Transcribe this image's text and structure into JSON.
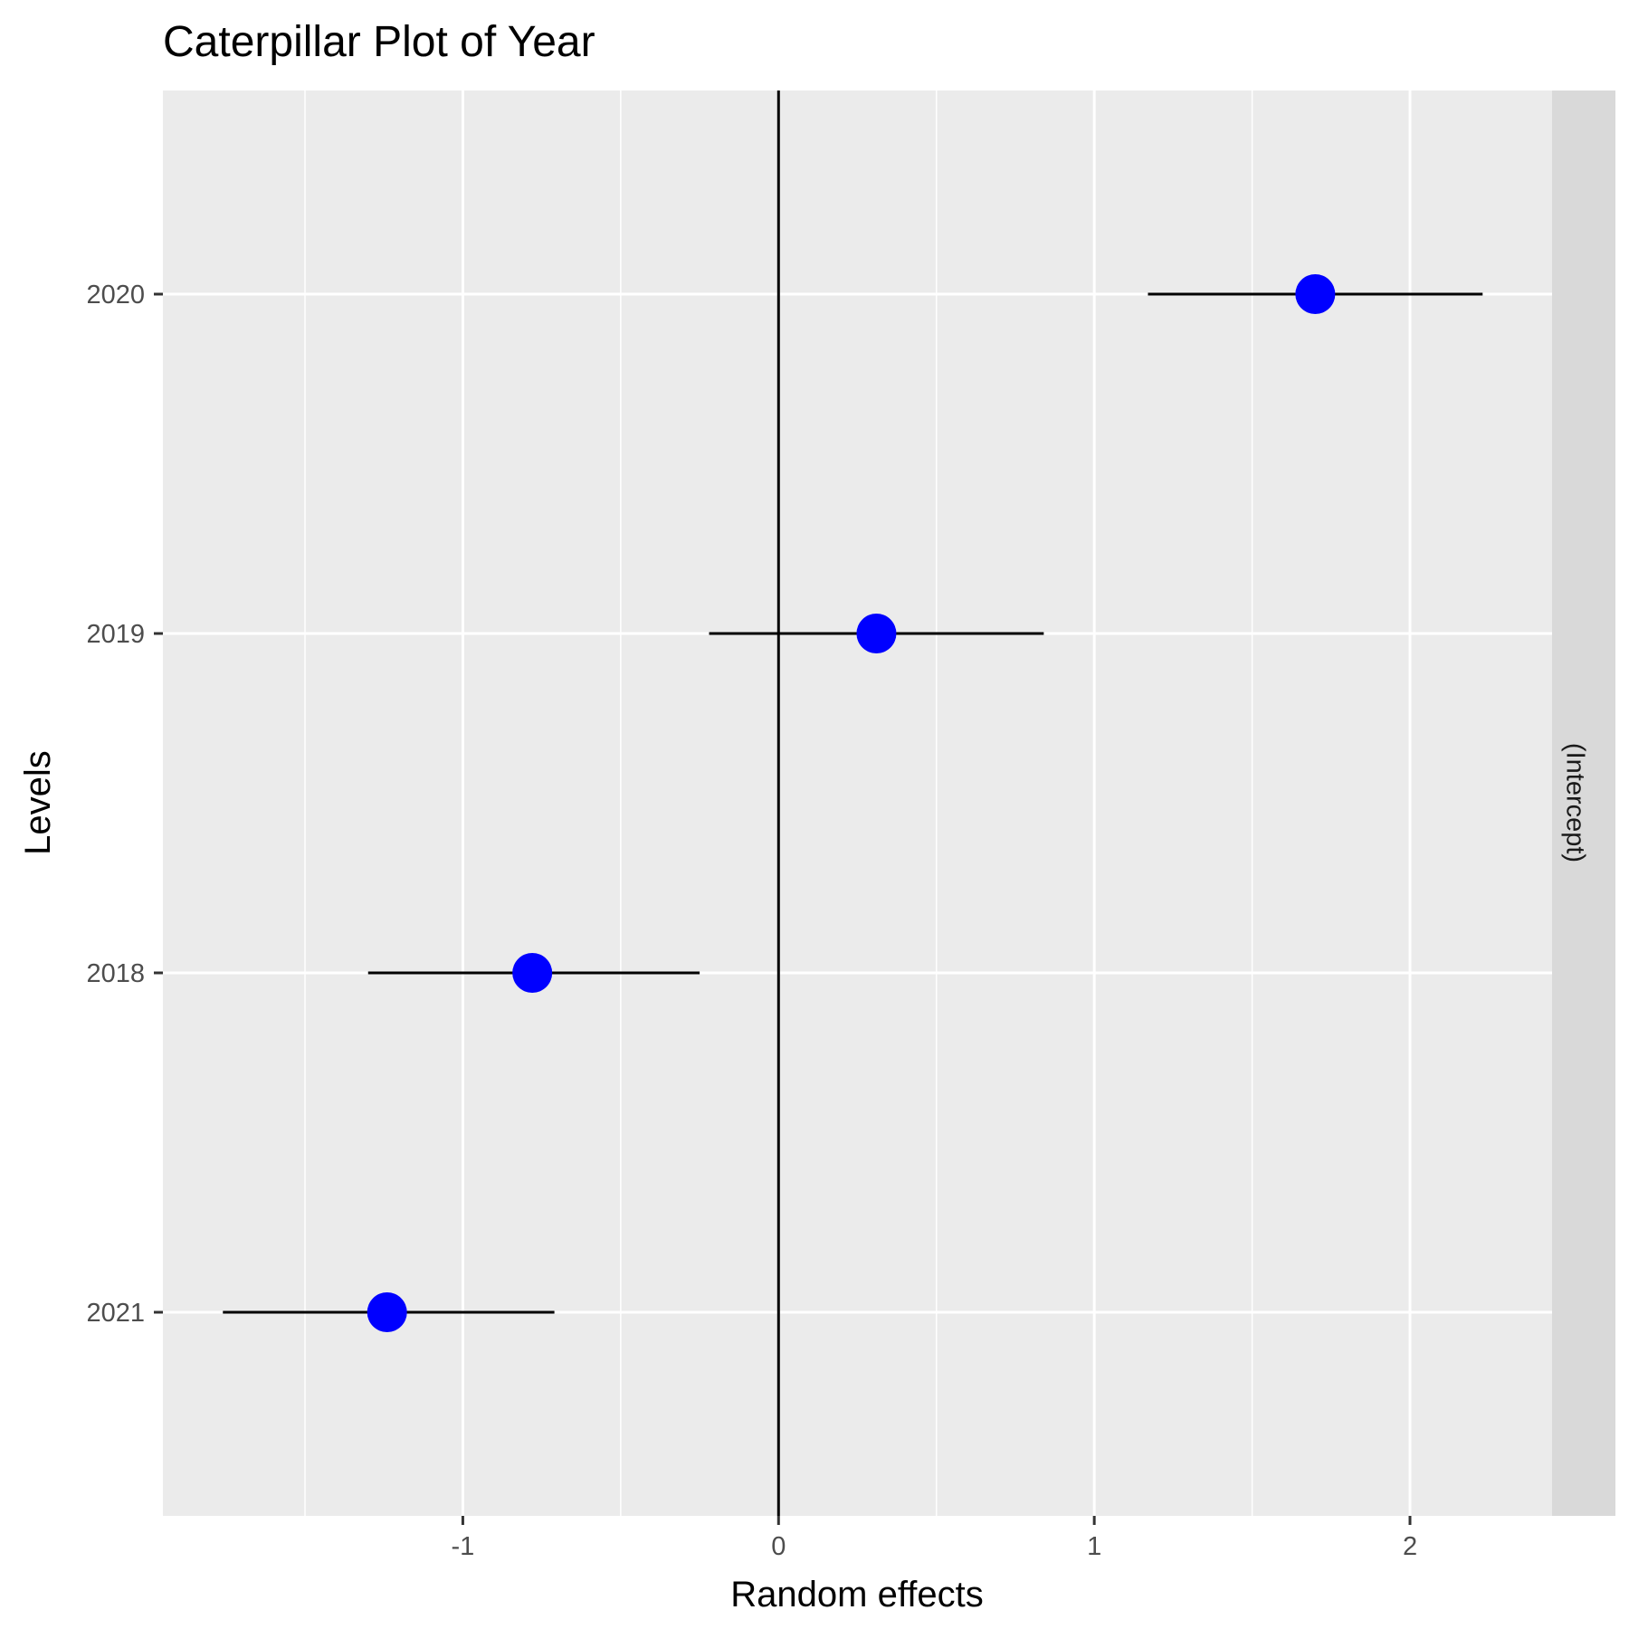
{
  "chart_data": {
    "type": "scatter",
    "title": "Caterpillar Plot of  Year",
    "xlabel": "Random effects",
    "ylabel": "Levels",
    "facet_label": "(Intercept)",
    "xlim": [
      -1.95,
      2.45
    ],
    "x_ticks": [
      -1,
      0,
      1,
      2
    ],
    "x_tick_labels": [
      "-1",
      "0",
      "1",
      "2"
    ],
    "reference_line_x": 0,
    "grid": true,
    "point_color": "#0000ff",
    "levels": [
      "2021",
      "2018",
      "2019",
      "2020"
    ],
    "points": [
      {
        "level": "2021",
        "estimate": -1.24,
        "lower": -1.76,
        "upper": -0.71
      },
      {
        "level": "2018",
        "estimate": -0.78,
        "lower": -1.3,
        "upper": -0.25
      },
      {
        "level": "2019",
        "estimate": 0.31,
        "lower": -0.22,
        "upper": 0.84
      },
      {
        "level": "2020",
        "estimate": 1.7,
        "lower": 1.17,
        "upper": 2.23
      }
    ]
  }
}
